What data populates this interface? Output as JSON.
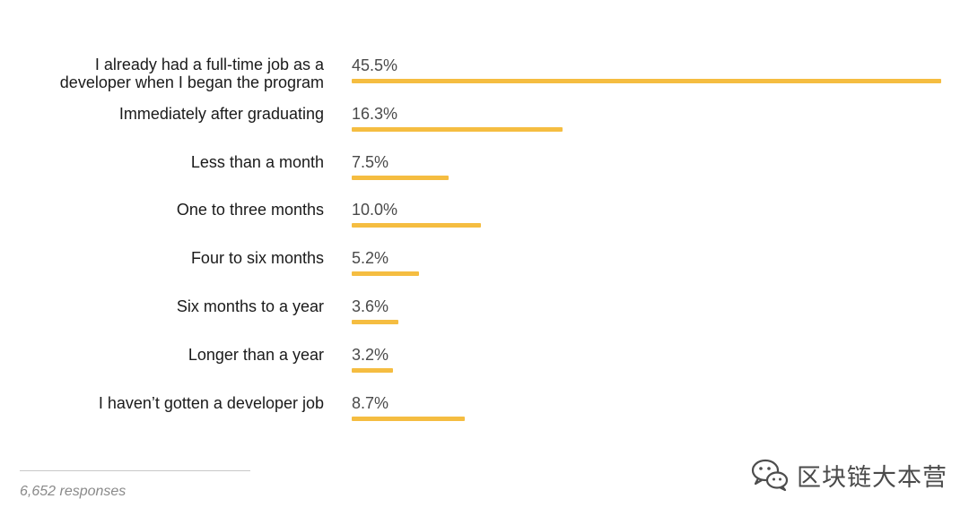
{
  "chart_data": {
    "type": "bar",
    "orientation": "horizontal",
    "categories": [
      "I already had a full-time job as a developer when I began the program",
      "Immediately after graduating",
      "Less than a month",
      "One to three months",
      "Four to six months",
      "Six months to a year",
      "Longer than a year",
      "I haven’t gotten a developer job"
    ],
    "category_lines": [
      [
        "I already had a full-time job as a",
        "developer when I began the program"
      ],
      [
        "Immediately after graduating"
      ],
      [
        "Less than a month"
      ],
      [
        "One to three months"
      ],
      [
        "Four to six months"
      ],
      [
        "Six months to a year"
      ],
      [
        "Longer than a year"
      ],
      [
        "I haven’t gotten a developer job"
      ]
    ],
    "values": [
      45.5,
      16.3,
      7.5,
      10.0,
      5.2,
      3.6,
      3.2,
      8.7
    ],
    "value_labels": [
      "45.5%",
      "16.3%",
      "7.5%",
      "10.0%",
      "5.2%",
      "3.6%",
      "3.2%",
      "8.7%"
    ],
    "xlim": [
      0,
      45.5
    ],
    "grid": false,
    "legend": "none",
    "bar_color": "#f5bd41"
  },
  "footer": {
    "note": "6,652 responses"
  },
  "watermark": {
    "text": "区块链大本营",
    "icon": "wechat-icon"
  }
}
